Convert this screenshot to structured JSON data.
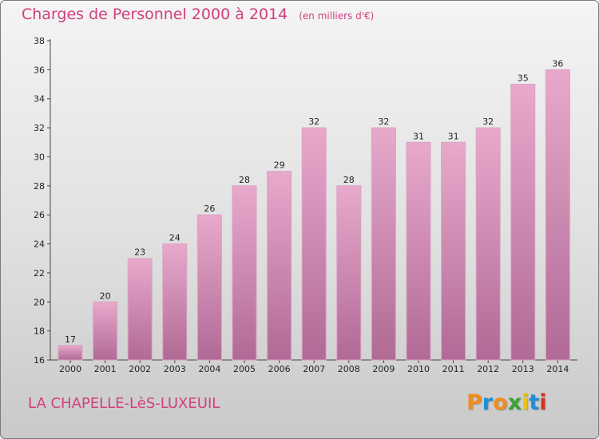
{
  "title": "Charges de Personnel 2000 à 2014",
  "subtitle": "(en milliers d'€)",
  "commune": "LA CHAPELLE-LèS-LUXEUIL",
  "logo": {
    "letters": [
      "P",
      "r",
      "o",
      "x",
      "i",
      "t",
      "i"
    ],
    "colors": [
      "#f08c1e",
      "#1e8fd6",
      "#f08c1e",
      "#3aa335",
      "#e8c31b",
      "#1e8fd6",
      "#d6331e"
    ]
  },
  "chart_data": {
    "type": "bar",
    "title": "Charges de Personnel 2000 à 2014",
    "subtitle": "(en milliers d'€)",
    "categories": [
      "2000",
      "2001",
      "2002",
      "2003",
      "2004",
      "2005",
      "2006",
      "2007",
      "2008",
      "2009",
      "2010",
      "2011",
      "2012",
      "2013",
      "2014"
    ],
    "values": [
      17,
      20,
      23,
      24,
      26,
      28,
      29,
      32,
      28,
      32,
      31,
      31,
      32,
      35,
      36
    ],
    "ylim": [
      16,
      38
    ],
    "yticks": [
      16,
      18,
      20,
      22,
      24,
      26,
      28,
      30,
      32,
      34,
      36,
      38
    ],
    "grid": false,
    "bar_color": "#dc8fbb"
  }
}
